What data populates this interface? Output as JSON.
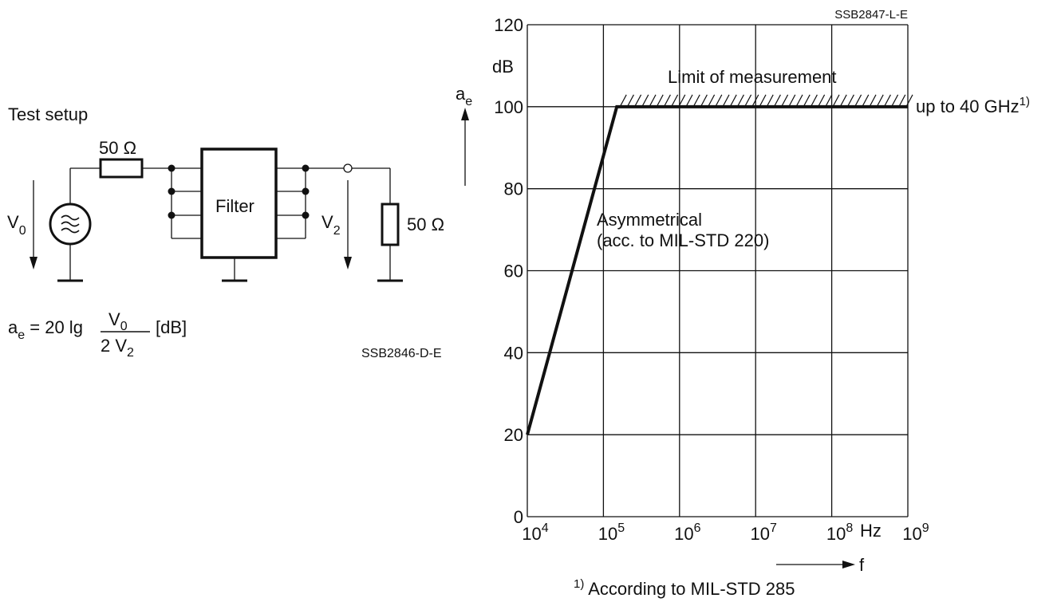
{
  "schematic": {
    "title": "Test setup",
    "r_in_label": "50 Ω",
    "filter_label": "Filter",
    "v0_label": "V",
    "v0_sub": "0",
    "v2_label": "V",
    "v2_sub": "2",
    "r_out_label": "50 Ω",
    "eq_lhs": "a",
    "eq_lhs_sub": "e",
    "eq_mid": " = 20 lg",
    "eq_num": "V",
    "eq_num_sub": "0",
    "eq_den": "2 V",
    "eq_den_sub": "2",
    "eq_unit": "[dB]",
    "code": "SSB2846-D-E"
  },
  "chart": {
    "code": "SSB2847-L-E",
    "y_axis_symbol": "a",
    "y_axis_sub": "e",
    "y_unit": "dB",
    "x_axis_symbol": "f",
    "x_unit": "Hz",
    "limit_label": "Limit of measurement",
    "limit_note": "up to 40 GHz",
    "limit_note_sup": "1)",
    "curve_label_1": "Asymmetrical",
    "curve_label_2": "(acc. to MIL-STD 220)",
    "footnote_sup": "1)",
    "footnote": " According to MIL-STD 285",
    "colors": {
      "line": "#111111",
      "grid": "#111111",
      "background": "#ffffff"
    }
  },
  "chart_data": {
    "type": "line",
    "x_scale": "log",
    "xlim": [
      10000,
      1000000000
    ],
    "ylim": [
      0,
      120
    ],
    "x_ticks": [
      10000,
      100000,
      1000000,
      10000000,
      100000000,
      1000000000
    ],
    "x_tick_base": "10",
    "x_tick_exponents": [
      "4",
      "5",
      "6",
      "7",
      "8",
      "9"
    ],
    "y_ticks": [
      "0",
      "20",
      "40",
      "60",
      "80",
      "100",
      "120"
    ],
    "xlabel": "f",
    "ylabel": "a",
    "grid": true,
    "series": [
      {
        "name": "Asymmetrical (acc. to MIL-STD 220)",
        "x": [
          10000,
          150000,
          1000000000
        ],
        "y": [
          20,
          100,
          100
        ]
      }
    ],
    "limit_line": {
      "y": 100,
      "x_start": 150000,
      "x_end": 1000000000
    }
  }
}
